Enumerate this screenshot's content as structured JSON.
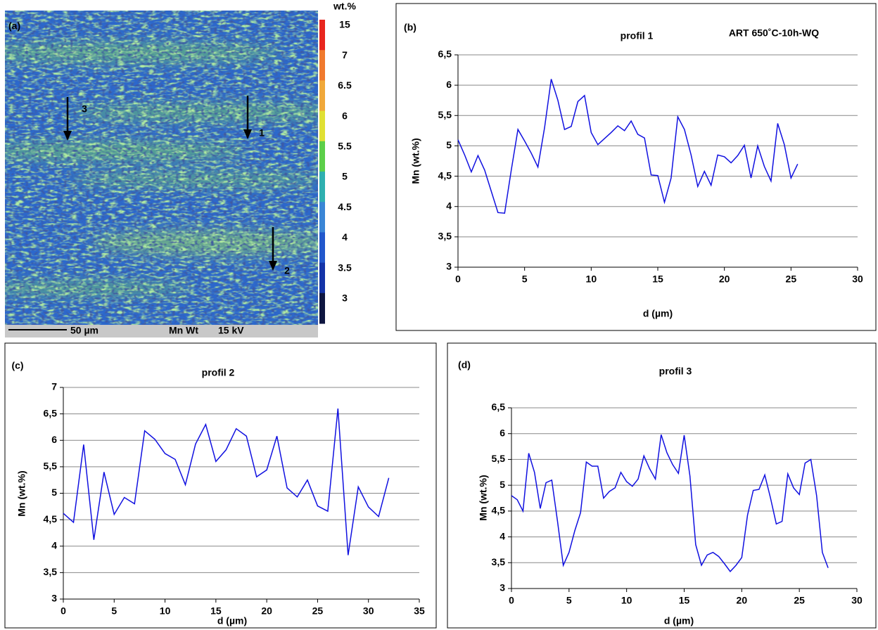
{
  "chart_data": [
    {
      "type": "map",
      "panel": "(a)",
      "colorbar_title": "wt.%",
      "levels": [
        15,
        7,
        6.5,
        6,
        5.5,
        5,
        4.5,
        4,
        3.5,
        3
      ],
      "colors": [
        "#e8261e",
        "#f07a2e",
        "#f0a83a",
        "#e0e034",
        "#5ccf4a",
        "#2fb0b0",
        "#3a86d6",
        "#2258cc",
        "#1434a8",
        "#0e1640"
      ],
      "annotations": [
        "1",
        "2",
        "3"
      ],
      "footer": [
        "50 µm",
        "Mn Wt",
        "15 kV"
      ]
    },
    {
      "type": "line",
      "panel": "(b)",
      "title": "profil 1",
      "subtitle": "ART 650˚C-10h-WQ",
      "xlabel": "d (µm)",
      "ylabel": "Mn (wt.%)",
      "x": [
        0,
        0.5,
        1,
        1.5,
        2,
        2.5,
        3,
        3.5,
        4,
        4.5,
        5,
        5.5,
        6,
        6.5,
        7,
        7.5,
        8,
        8.5,
        9,
        9.5,
        10,
        10.5,
        11,
        11.5,
        12,
        12.5,
        13,
        13.5,
        14,
        14.5,
        15,
        15.5,
        16,
        16.5,
        17,
        17.5,
        18,
        18.5,
        19,
        19.5,
        20,
        20.5,
        21,
        21.5,
        22,
        22.5,
        23,
        23.5,
        24,
        24.5,
        25,
        25.5
      ],
      "series": [
        {
          "color": "#1010e0",
          "values": [
            5.1,
            4.85,
            4.57,
            4.84,
            4.6,
            4.25,
            3.9,
            3.89,
            4.6,
            5.27,
            5.08,
            4.88,
            4.65,
            5.3,
            6.1,
            5.75,
            5.27,
            5.32,
            5.73,
            5.83,
            5.22,
            5.02,
            5.12,
            5.22,
            5.33,
            5.25,
            5.41,
            5.19,
            5.13,
            4.52,
            4.51,
            4.07,
            4.47,
            5.48,
            5.27,
            4.85,
            4.33,
            4.58,
            4.35,
            4.85,
            4.82,
            4.72,
            4.84,
            5.01,
            4.47,
            5.0,
            4.66,
            4.42,
            5.37,
            5.02,
            4.47,
            4.7
          ]
        }
      ],
      "xlim": [
        0,
        30
      ],
      "ylim": [
        3,
        6.5
      ],
      "xticks": [
        0,
        5,
        10,
        15,
        20,
        25,
        30
      ],
      "yticks": [
        3,
        {
          "value": 3.5,
          "label": "3,5"
        },
        4,
        {
          "value": 4.5,
          "label": "4,5"
        },
        5,
        {
          "value": 5.5,
          "label": "5,5"
        },
        6,
        {
          "value": 6.5,
          "label": "6,5"
        }
      ],
      "grid": true
    },
    {
      "type": "line",
      "panel": "(c)",
      "title": "profil 2",
      "xlabel": "d (µm)",
      "ylabel": "Mn (wt.%)",
      "x": [
        0,
        1,
        2,
        3,
        4,
        5,
        6,
        7,
        8,
        9,
        10,
        11,
        12,
        13,
        14,
        15,
        16,
        17,
        18,
        19,
        20,
        21,
        22,
        23,
        24,
        25,
        26,
        27,
        28,
        29,
        30,
        31,
        32
      ],
      "series": [
        {
          "color": "#1010e0",
          "values": [
            4.62,
            4.45,
            5.92,
            4.12,
            5.4,
            4.6,
            4.92,
            4.8,
            6.18,
            6.02,
            5.75,
            5.64,
            5.16,
            5.93,
            6.3,
            5.6,
            5.82,
            6.22,
            6.08,
            5.31,
            5.44,
            6.08,
            5.1,
            4.93,
            5.25,
            4.76,
            4.66,
            6.6,
            3.83,
            5.12,
            4.74,
            4.56,
            5.29
          ]
        }
      ],
      "xlim": [
        0,
        35
      ],
      "ylim": [
        3,
        7
      ],
      "xticks": [
        0,
        5,
        10,
        15,
        20,
        25,
        30,
        35
      ],
      "yticks": [
        3,
        {
          "value": 3.5,
          "label": "3,5"
        },
        4,
        {
          "value": 4.5,
          "label": "4,5"
        },
        5,
        {
          "value": 5.5,
          "label": "5,5"
        },
        6,
        {
          "value": 6.5,
          "label": "6,5"
        },
        7
      ],
      "grid": true
    },
    {
      "type": "line",
      "panel": "(d)",
      "title": "profil 3",
      "xlabel": "d (µm)",
      "ylabel": "Mn (wt.%)",
      "x": [
        0,
        0.5,
        1,
        1.5,
        2,
        2.5,
        3,
        3.5,
        4,
        4.5,
        5,
        5.5,
        6,
        6.5,
        7,
        7.5,
        8,
        8.5,
        9,
        9.5,
        10,
        10.5,
        11,
        11.5,
        12,
        12.5,
        13,
        13.5,
        14,
        14.5,
        15,
        15.5,
        16,
        16.5,
        17,
        17.5,
        18,
        18.5,
        19,
        19.5,
        20,
        20.5,
        21,
        21.5,
        22,
        22.5,
        23,
        23.5,
        24,
        24.5,
        25,
        25.5,
        26,
        26.5,
        27,
        27.5
      ],
      "series": [
        {
          "color": "#1010e0",
          "values": [
            4.8,
            4.72,
            4.5,
            5.62,
            5.25,
            4.55,
            5.05,
            5.1,
            4.3,
            3.45,
            3.7,
            4.12,
            4.47,
            5.45,
            5.37,
            5.37,
            4.75,
            4.88,
            4.95,
            5.25,
            5.07,
            4.98,
            5.12,
            5.57,
            5.32,
            5.12,
            5.98,
            5.63,
            5.4,
            5.23,
            5.97,
            5.18,
            3.85,
            3.45,
            3.65,
            3.7,
            3.62,
            3.48,
            3.33,
            3.45,
            3.6,
            4.42,
            4.9,
            4.92,
            5.2,
            4.75,
            4.25,
            4.3,
            5.22,
            4.95,
            4.82,
            5.43,
            5.5,
            4.8,
            3.7,
            3.4
          ]
        }
      ],
      "xlim": [
        0,
        30
      ],
      "ylim": [
        3,
        6.5
      ],
      "xticks": [
        0,
        5,
        10,
        15,
        20,
        25,
        30
      ],
      "yticks": [
        3,
        {
          "value": 3.5,
          "label": "3,5"
        },
        4,
        {
          "value": 4.5,
          "label": "4,5"
        },
        5,
        {
          "value": 5.5,
          "label": "5,5"
        },
        6,
        {
          "value": 6.5,
          "label": "6,5"
        }
      ],
      "grid": true
    }
  ]
}
